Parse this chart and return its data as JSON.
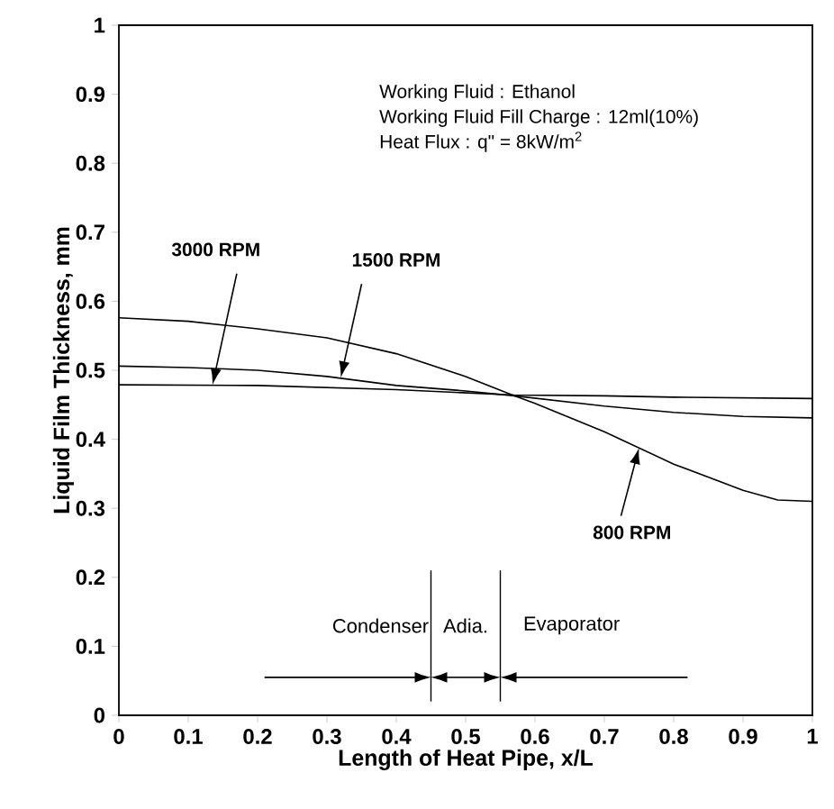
{
  "chart_data": {
    "type": "line",
    "xlabel": "Length of Heat Pipe, x/L",
    "ylabel": "Liquid Film Thickness, mm",
    "xlim": [
      0,
      1
    ],
    "ylim": [
      0,
      1
    ],
    "xticks": [
      0,
      0.1,
      0.2,
      0.3,
      0.4,
      0.5,
      0.6,
      0.7,
      0.8,
      0.9,
      1
    ],
    "yticks": [
      0,
      0.1,
      0.2,
      0.3,
      0.4,
      0.5,
      0.6,
      0.7,
      0.8,
      0.9,
      1
    ],
    "grid": false,
    "marker": "none",
    "line_style": "solid",
    "series": [
      {
        "name": "800 RPM",
        "color": "#000000",
        "x": [
          0,
          0.1,
          0.2,
          0.3,
          0.4,
          0.5,
          0.57,
          0.6,
          0.7,
          0.8,
          0.9,
          0.95,
          1
        ],
        "values": [
          0.576,
          0.571,
          0.56,
          0.547,
          0.524,
          0.491,
          0.463,
          0.452,
          0.411,
          0.364,
          0.326,
          0.312,
          0.31
        ]
      },
      {
        "name": "1500 RPM",
        "color": "#000000",
        "x": [
          0,
          0.1,
          0.2,
          0.3,
          0.4,
          0.5,
          0.57,
          0.7,
          0.8,
          0.9,
          1
        ],
        "values": [
          0.506,
          0.504,
          0.5,
          0.491,
          0.478,
          0.47,
          0.463,
          0.448,
          0.439,
          0.433,
          0.431
        ]
      },
      {
        "name": "3000 RPM",
        "color": "#000000",
        "x": [
          0,
          0.2,
          0.4,
          0.57,
          0.7,
          0.8,
          1
        ],
        "values": [
          0.479,
          0.478,
          0.472,
          0.464,
          0.463,
          0.461,
          0.459
        ]
      }
    ],
    "ref_lines": [
      {
        "axis": "x",
        "value": 0.45,
        "color": "#000000"
      },
      {
        "axis": "x",
        "value": 0.55,
        "color": "#000000"
      }
    ],
    "annotations": [
      "Working Fluid : Ethanol",
      "Working Fluid Fill Charge  : 12ml(10%)",
      "Heat Flux : q\" = 8kW/m$^{2}$",
      "Condenser",
      "Adia.",
      "Evaporator"
    ]
  }
}
